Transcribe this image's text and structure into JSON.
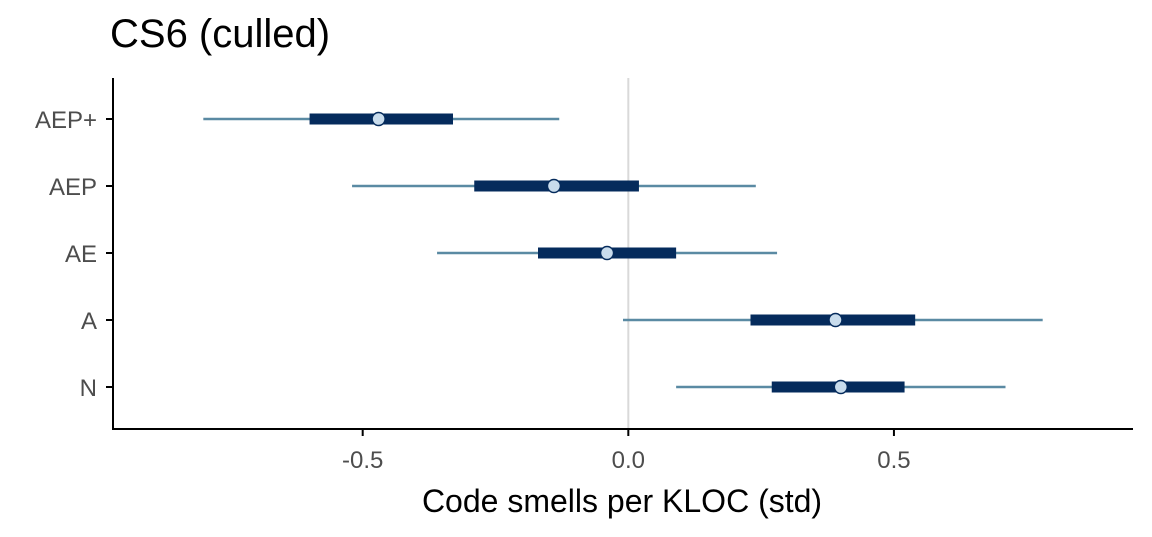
{
  "chart_data": {
    "type": "interval",
    "title": "CS6 (culled)",
    "xlabel": "Code smells per KLOC (std)",
    "ylabel": "",
    "xlim": [
      -0.97,
      0.95
    ],
    "x_ticks": [
      -0.5,
      0.0,
      0.5
    ],
    "x_tick_labels": [
      "-0.5",
      "0.0",
      "0.5"
    ],
    "categories": [
      "AEP+",
      "AEP",
      "AE",
      "A",
      "N"
    ],
    "reference_line": 0.0,
    "grid": false,
    "legend": "none",
    "estimates": [
      {
        "label": "AEP+",
        "median": -0.47,
        "inner": [
          -0.6,
          -0.33
        ],
        "outer": [
          -0.8,
          -0.13
        ]
      },
      {
        "label": "AEP",
        "median": -0.14,
        "inner": [
          -0.29,
          0.02
        ],
        "outer": [
          -0.52,
          0.24
        ]
      },
      {
        "label": "AE",
        "median": -0.04,
        "inner": [
          -0.17,
          0.09
        ],
        "outer": [
          -0.36,
          0.28
        ]
      },
      {
        "label": "A",
        "median": 0.39,
        "inner": [
          0.23,
          0.54
        ],
        "outer": [
          -0.01,
          0.78
        ]
      },
      {
        "label": "N",
        "median": 0.4,
        "inner": [
          0.27,
          0.52
        ],
        "outer": [
          0.09,
          0.71
        ]
      }
    ],
    "colors": {
      "outer_interval": "#5a8aa3",
      "inner_interval": "#052b5c",
      "point_fill": "#c9dcec",
      "point_stroke": "#052b5c",
      "reference_line": "#d9d9d9",
      "axis": "#000000"
    }
  }
}
